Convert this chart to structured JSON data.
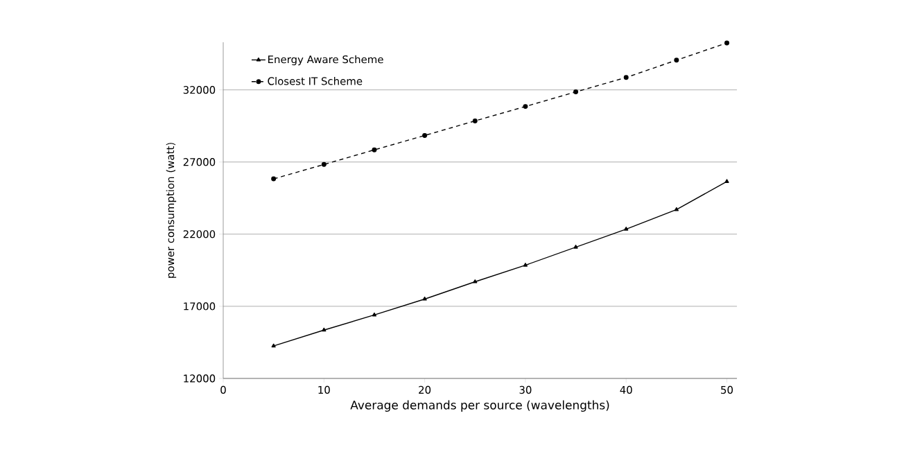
{
  "chart_data": {
    "type": "line",
    "xlabel": "Average demands per source (wavelengths)",
    "ylabel": "power consumption (watt)",
    "x": [
      5,
      10,
      15,
      20,
      25,
      30,
      35,
      40,
      45,
      50
    ],
    "series": [
      {
        "name": "Energy Aware Scheme",
        "color": "#000000",
        "marker": "triangle",
        "line_style": "solid",
        "values": [
          14250,
          15350,
          16400,
          17500,
          18700,
          19850,
          21100,
          22350,
          23700,
          25650
        ]
      },
      {
        "name": "Closest IT Scheme",
        "color": "#000000",
        "marker": "circle",
        "line_style": "dashed",
        "values": [
          25830,
          26830,
          27840,
          28840,
          29850,
          30850,
          31860,
          32860,
          34060,
          35250
        ]
      }
    ],
    "xlim": [
      0,
      51
    ],
    "ylim": [
      12000,
      35300
    ],
    "xticks": [
      0,
      10,
      20,
      30,
      40,
      50
    ],
    "yticks": [
      12000,
      17000,
      22000,
      27000,
      32000
    ],
    "grid": "y",
    "legend": "top left"
  }
}
